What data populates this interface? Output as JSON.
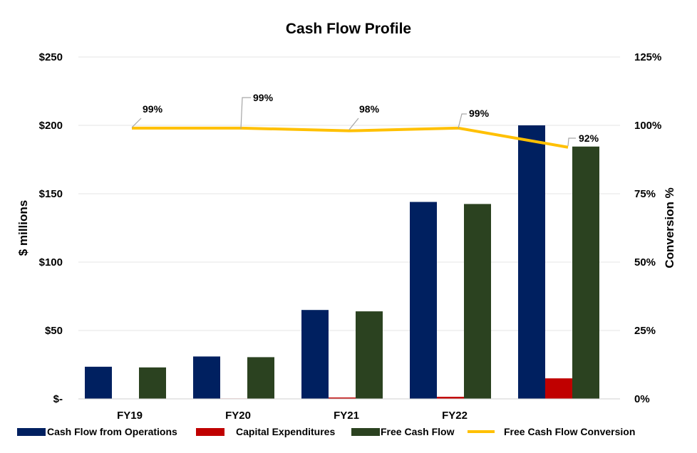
{
  "chart_data": {
    "type": "bar",
    "title": "Cash Flow Profile",
    "categories": [
      "FY19",
      "FY20",
      "FY21",
      "FY22",
      ""
    ],
    "ylabel": "$ millions",
    "y2label": "Conversion %",
    "ylim": [
      0,
      250
    ],
    "y2lim": [
      0,
      125
    ],
    "yticks": [
      "$-",
      "$50",
      "$100",
      "$150",
      "$200",
      "$250"
    ],
    "y2ticks": [
      "0%",
      "25%",
      "50%",
      "75%",
      "100%",
      "125%"
    ],
    "series": [
      {
        "name": "Cash Flow from Operations",
        "kind": "bar",
        "color": "#002060",
        "values": [
          23.5,
          31,
          65,
          144,
          200
        ]
      },
      {
        "name": "Capital Expenditures",
        "kind": "bar",
        "color": "#c00000",
        "values": [
          0.2,
          0.3,
          1,
          1.5,
          15
        ]
      },
      {
        "name": "Free Cash Flow",
        "kind": "bar",
        "color": "#2b4220",
        "values": [
          23,
          30.5,
          64,
          142.5,
          184.5
        ]
      },
      {
        "name": "Free Cash Flow Conversion",
        "kind": "line",
        "axis": "secondary",
        "color": "#ffc000",
        "values": [
          99,
          99,
          98,
          99,
          92
        ],
        "labels": [
          "99%",
          "99%",
          "98%",
          "99%",
          "92%"
        ]
      }
    ],
    "grid": true,
    "legend": "bottom"
  }
}
